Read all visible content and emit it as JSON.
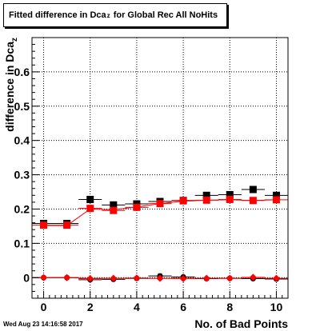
{
  "chart_data": {
    "type": "scatter",
    "title_main": "Fitted difference in Dca",
    "title_sub": "z",
    "title_rest": " for Global Rec All NoHits",
    "xlabel": "No. of Bad Points",
    "ylabel_main": "difference in Dca",
    "ylabel_sub": "z",
    "xlim": [
      -0.5,
      10.5
    ],
    "ylim": [
      -0.06,
      0.7
    ],
    "x_ticks": [
      0,
      2,
      4,
      6,
      8,
      10
    ],
    "y_ticks": [
      0,
      0.1,
      0.2,
      0.3,
      0.4,
      0.5,
      0.6
    ],
    "grid": true,
    "series": [
      {
        "marker": "square",
        "color": "#000000",
        "x": [
          0,
          1,
          2,
          3,
          4,
          5,
          6,
          7,
          8,
          9,
          10
        ],
        "y": [
          0.158,
          0.158,
          0.228,
          0.212,
          0.215,
          0.222,
          0.225,
          0.24,
          0.242,
          0.257,
          0.24
        ]
      },
      {
        "marker": "square",
        "color": "#ff0000",
        "x": [
          0,
          1,
          2,
          3,
          4,
          5,
          6,
          7,
          8,
          9,
          10
        ],
        "y": [
          0.153,
          0.153,
          0.202,
          0.196,
          0.205,
          0.216,
          0.224,
          0.226,
          0.228,
          0.225,
          0.227
        ]
      },
      {
        "marker": "circle",
        "color": "#000000",
        "x": [
          0,
          1,
          2,
          3,
          4,
          5,
          6,
          7,
          8,
          9,
          10
        ],
        "y": [
          0.0,
          0.0,
          -0.006,
          -0.005,
          -0.002,
          0.005,
          0.002,
          -0.003,
          -0.002,
          -0.003,
          -0.004
        ]
      },
      {
        "marker": "diamond",
        "color": "#ff0000",
        "x": [
          0,
          1,
          2,
          3,
          4,
          5,
          6,
          7,
          8,
          9,
          10
        ],
        "y": [
          0.0,
          0.0,
          -0.003,
          -0.002,
          -0.001,
          -0.002,
          -0.003,
          -0.002,
          -0.002,
          0.001,
          -0.002
        ]
      }
    ],
    "fit_lines": [
      {
        "color": "#ff0000",
        "x": [
          0,
          1,
          2,
          3,
          4,
          5,
          6,
          7,
          8,
          9,
          10
        ],
        "y": [
          0.152,
          0.152,
          0.2,
          0.198,
          0.206,
          0.216,
          0.223,
          0.226,
          0.227,
          0.225,
          0.227
        ]
      },
      {
        "color": "#ff0000",
        "x": [
          0,
          1,
          2,
          3,
          4,
          5,
          6,
          7,
          8,
          9,
          10
        ],
        "y": [
          0.0,
          0.0,
          -0.002,
          -0.002,
          -0.002,
          -0.002,
          -0.002,
          -0.002,
          -0.002,
          -0.002,
          -0.002
        ]
      }
    ],
    "timestamp": "Wed Aug 23 14:16:58 2017"
  }
}
